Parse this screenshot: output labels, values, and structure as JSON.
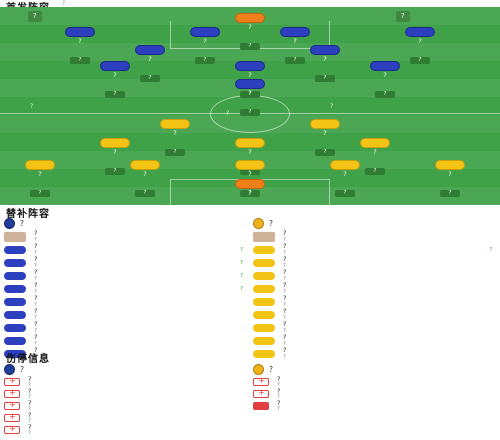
{
  "lineup_title": "首发阵容",
  "lineup_hint": "?",
  "pitch": {
    "top_team_label": "?",
    "bottom_team_label": "?",
    "top_info": "?",
    "bottom_info": "?",
    "center_note": "?"
  },
  "players": [
    {
      "name": "?",
      "rating": "?",
      "shirt": "gk-orange",
      "team": "blue"
    },
    {
      "name": "?",
      "rating": "?",
      "shirt": "blue",
      "team": "blue"
    },
    {
      "name": "?",
      "rating": "?",
      "shirt": "blue",
      "team": "blue"
    },
    {
      "name": "?",
      "rating": "?",
      "shirt": "blue",
      "team": "blue"
    },
    {
      "name": "?",
      "rating": "?",
      "shirt": "blue",
      "team": "blue"
    },
    {
      "name": "?",
      "rating": "?",
      "shirt": "blue",
      "team": "blue"
    },
    {
      "name": "?",
      "rating": "?",
      "shirt": "blue",
      "team": "blue"
    },
    {
      "name": "?",
      "rating": "?",
      "shirt": "blue",
      "team": "blue"
    },
    {
      "name": "?",
      "rating": "?",
      "shirt": "blue",
      "team": "blue"
    },
    {
      "name": "?",
      "rating": "?",
      "shirt": "blue",
      "team": "blue"
    },
    {
      "name": "?",
      "rating": "?",
      "shirt": "blue",
      "team": "blue"
    },
    {
      "name": "?",
      "rating": "?",
      "shirt": "yellow",
      "team": "yellow"
    },
    {
      "name": "?",
      "rating": "?",
      "shirt": "yellow",
      "team": "yellow"
    },
    {
      "name": "?",
      "rating": "?",
      "shirt": "yellow",
      "team": "yellow"
    },
    {
      "name": "?",
      "rating": "?",
      "shirt": "yellow",
      "team": "yellow"
    },
    {
      "name": "?",
      "rating": "?",
      "shirt": "yellow",
      "team": "yellow"
    },
    {
      "name": "?",
      "rating": "?",
      "shirt": "yellow",
      "team": "yellow"
    },
    {
      "name": "?",
      "rating": "?",
      "shirt": "yellow",
      "team": "yellow"
    },
    {
      "name": "?",
      "rating": "?",
      "shirt": "yellow",
      "team": "yellow"
    },
    {
      "name": "?",
      "rating": "?",
      "shirt": "yellow",
      "team": "yellow"
    },
    {
      "name": "?",
      "rating": "?",
      "shirt": "yellow",
      "team": "yellow"
    },
    {
      "name": "?",
      "rating": "?",
      "shirt": "gk-orange",
      "team": "yellow"
    }
  ],
  "subs_title": "替补阵容",
  "subs": {
    "left_team": "?",
    "left_coach": "?",
    "left_coach_role": "?",
    "right_team": "?",
    "right_coach": "?",
    "right_coach_role": "?",
    "left": [
      {
        "name": "?",
        "pos": "?",
        "tag": "?"
      },
      {
        "name": "?",
        "pos": "?",
        "tag": "?"
      },
      {
        "name": "?",
        "pos": "?",
        "tag": "?"
      },
      {
        "name": "?",
        "pos": "?",
        "tag": "?"
      },
      {
        "name": "?",
        "pos": "?",
        "tag": ""
      },
      {
        "name": "?",
        "pos": "?",
        "tag": ""
      },
      {
        "name": "?",
        "pos": "?",
        "tag": ""
      },
      {
        "name": "?",
        "pos": "?",
        "tag": ""
      },
      {
        "name": "?",
        "pos": "?",
        "tag": ""
      }
    ],
    "right": [
      {
        "name": "?",
        "pos": "?",
        "tag": "?"
      },
      {
        "name": "?",
        "pos": "?",
        "tag": ""
      },
      {
        "name": "?",
        "pos": "?",
        "tag": ""
      },
      {
        "name": "?",
        "pos": "?",
        "tag": ""
      },
      {
        "name": "?",
        "pos": "?",
        "tag": ""
      },
      {
        "name": "?",
        "pos": "?",
        "tag": ""
      },
      {
        "name": "?",
        "pos": "?",
        "tag": ""
      },
      {
        "name": "?",
        "pos": "?",
        "tag": ""
      },
      {
        "name": "?",
        "pos": "?",
        "tag": ""
      }
    ]
  },
  "injury_title": "伤停信息",
  "injuries": {
    "left_team": "?",
    "right_team": "?",
    "left": [
      {
        "name": "?",
        "pos": "?"
      },
      {
        "name": "?",
        "pos": "?"
      },
      {
        "name": "?",
        "pos": "?"
      },
      {
        "name": "?",
        "pos": "?"
      },
      {
        "name": "?",
        "pos": "?"
      }
    ],
    "right": [
      {
        "name": "?",
        "pos": "?"
      },
      {
        "name": "?",
        "pos": "?"
      },
      {
        "name": "?",
        "pos": "?"
      }
    ]
  },
  "colors": {
    "pitch": "#3fa148",
    "home": "#2b3fbf",
    "away": "#f3c316",
    "keeper": "#f07f1a"
  }
}
